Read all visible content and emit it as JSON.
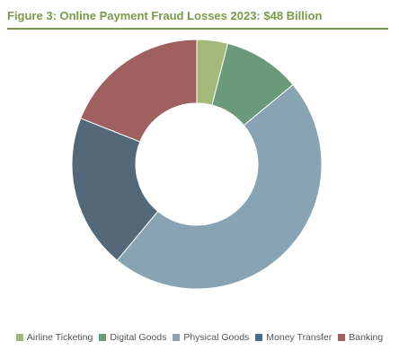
{
  "chart_data": {
    "type": "pie",
    "title": "Figure 3: Online Payment Fraud Losses 2023: $48 Billion",
    "donut": true,
    "legend_position": "bottom",
    "categories": [
      "Airline Ticketing",
      "Digital Goods",
      "Physical Goods",
      "Money Transfer",
      "Banking"
    ],
    "values": [
      4,
      10,
      47,
      20,
      19
    ],
    "colors": [
      "#a3b97a",
      "#6a9a7a",
      "#88a3b3",
      "#536878",
      "#a06060"
    ]
  }
}
